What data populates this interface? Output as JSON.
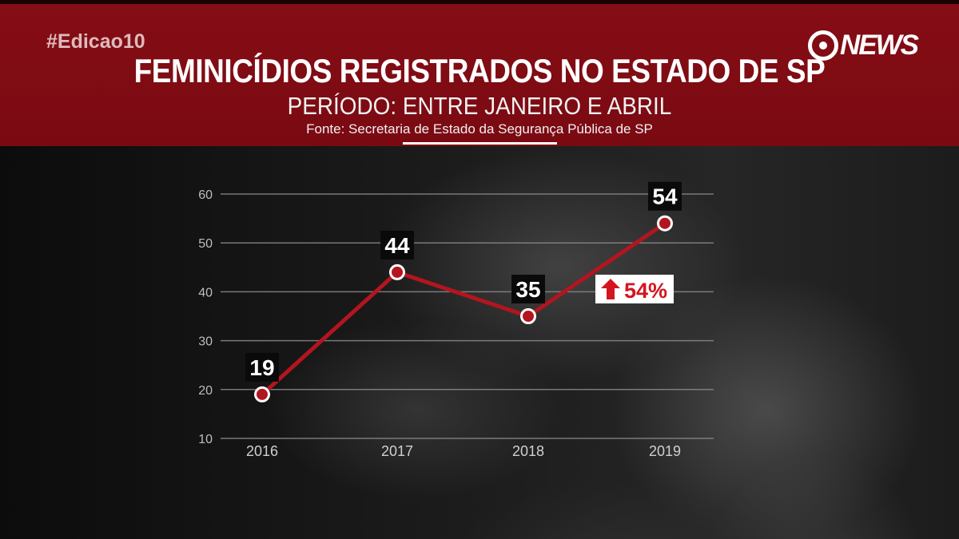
{
  "header": {
    "hashtag": "#Edicao10",
    "logo": "GNEWS",
    "title": "FEMINICÍDIOS REGISTRADOS NO ESTADO DE SP",
    "subtitle": "PERÍODO: ENTRE JANEIRO E ABRIL",
    "source": "Fonte: Secretaria de Estado da Segurança Pública de SP"
  },
  "colors": {
    "band": "#7e0b13",
    "line": "#b3151f",
    "badge": "#d4151f",
    "label_box": "#0a0a0a",
    "text": "#ffffff"
  },
  "chart_data": {
    "type": "line",
    "categories": [
      "2016",
      "2017",
      "2018",
      "2019"
    ],
    "values": [
      19,
      44,
      35,
      54
    ],
    "data_labels": [
      "19",
      "44",
      "35",
      "54"
    ],
    "ylim": [
      10,
      60
    ],
    "yticks": [
      10,
      20,
      30,
      40,
      50,
      60
    ],
    "ytick_labels": [
      "10",
      "20",
      "30",
      "40",
      "50",
      "60"
    ],
    "grid": true,
    "annotation": {
      "text": "54%",
      "icon": "arrow-up-icon",
      "direction": "up"
    }
  }
}
